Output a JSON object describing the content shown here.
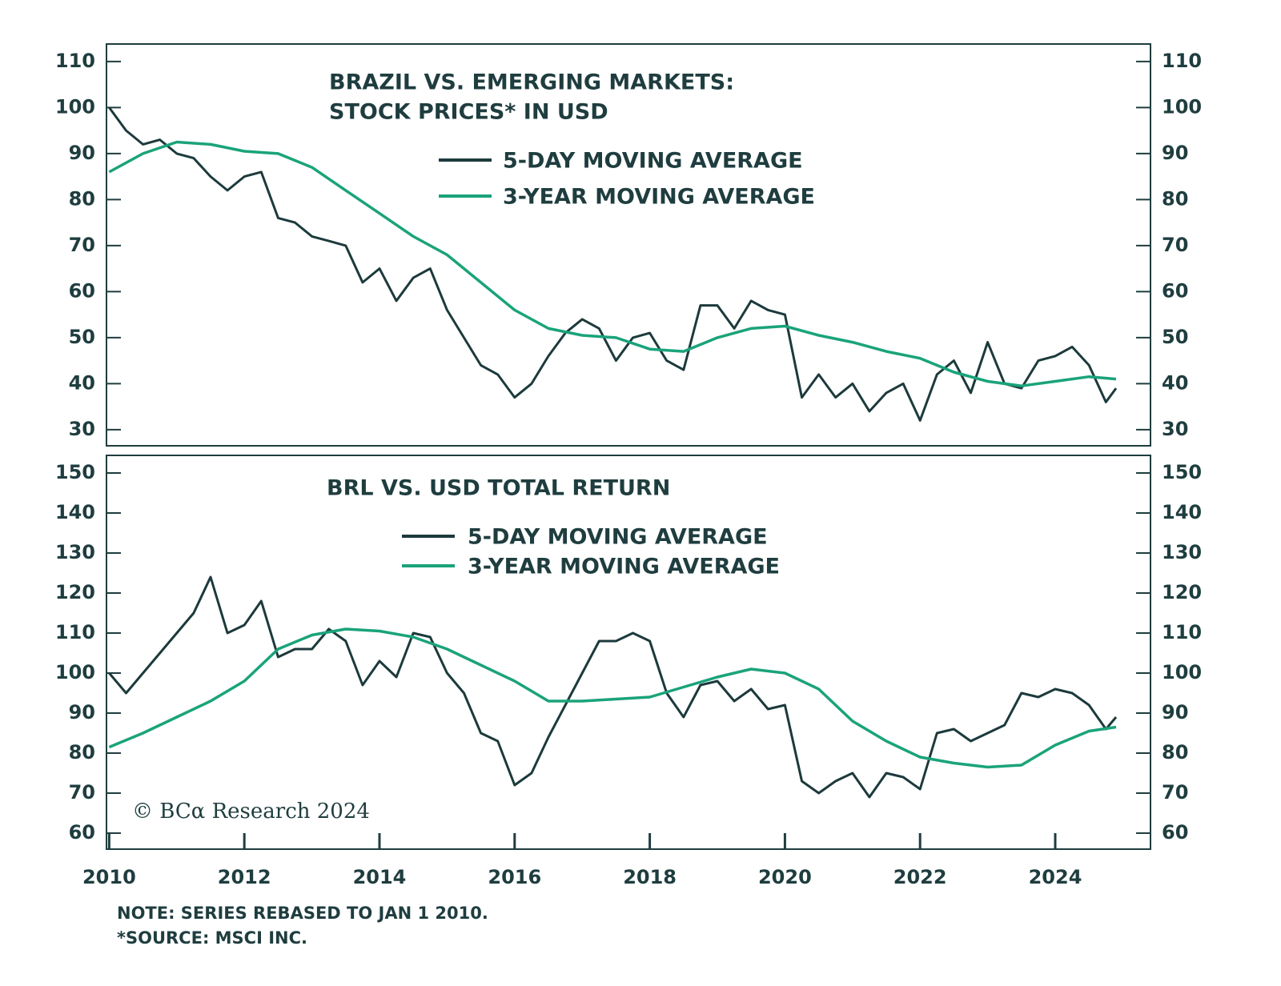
{
  "charts": [
    {
      "chart_data": {
        "type": "line",
        "title": [
          "BRAZIL VS. EMERGING MARKETS:",
          "STOCK PRICES* IN USD"
        ],
        "xlim": [
          2009.96,
          2025.41
        ],
        "ylim": [
          26.5,
          113.8
        ],
        "yticks": [
          30,
          40,
          50,
          60,
          70,
          80,
          90,
          100,
          110
        ],
        "series": [
          {
            "name": "5-DAY MOVING AVERAGE",
            "color": "#1c3a3c",
            "x": [
              2010,
              2010.25,
              2010.5,
              2010.75,
              2011,
              2011.25,
              2011.5,
              2011.75,
              2012,
              2012.25,
              2012.5,
              2012.75,
              2013,
              2013.25,
              2013.5,
              2013.75,
              2014,
              2014.25,
              2014.5,
              2014.75,
              2015,
              2015.25,
              2015.5,
              2015.75,
              2016,
              2016.25,
              2016.5,
              2016.75,
              2017,
              2017.25,
              2017.5,
              2017.75,
              2018,
              2018.25,
              2018.5,
              2018.75,
              2019,
              2019.25,
              2019.5,
              2019.75,
              2020,
              2020.25,
              2020.5,
              2020.75,
              2021,
              2021.25,
              2021.5,
              2021.75,
              2022,
              2022.25,
              2022.5,
              2022.75,
              2023,
              2023.25,
              2023.5,
              2023.75,
              2024,
              2024.25,
              2024.5,
              2024.75,
              2024.9
            ],
            "values": [
              100,
              95,
              92,
              93,
              90,
              89,
              85,
              82,
              85,
              86,
              76,
              75,
              72,
              71,
              70,
              62,
              65,
              58,
              63,
              65,
              56,
              50,
              44,
              42,
              37,
              40,
              46,
              51,
              54,
              52,
              45,
              50,
              51,
              45,
              43,
              57,
              57,
              52,
              58,
              56,
              55,
              37,
              42,
              37,
              40,
              34,
              38,
              40,
              32,
              42,
              45,
              38,
              49,
              40,
              39,
              45,
              46,
              48,
              44,
              36,
              39
            ]
          },
          {
            "name": "3-YEAR MOVING AVERAGE",
            "color": "#1aa37a",
            "x": [
              2010,
              2010.5,
              2011,
              2011.5,
              2012,
              2012.5,
              2013,
              2013.5,
              2014,
              2014.5,
              2015,
              2015.5,
              2016,
              2016.5,
              2017,
              2017.5,
              2018,
              2018.5,
              2019,
              2019.5,
              2020,
              2020.5,
              2021,
              2021.5,
              2022,
              2022.5,
              2023,
              2023.5,
              2024,
              2024.5,
              2024.9
            ],
            "values": [
              86,
              90,
              92.5,
              92,
              90.5,
              90,
              87,
              82,
              77,
              72,
              68,
              62,
              56,
              52,
              50.5,
              50,
              47.5,
              47,
              50,
              52,
              52.5,
              50.5,
              49,
              47,
              45.5,
              42.5,
              40.5,
              39.5,
              40.5,
              41.5,
              41
            ]
          }
        ]
      }
    },
    {
      "chart_data": {
        "type": "line",
        "title": [
          "BRL VS. USD TOTAL RETURN"
        ],
        "annotation": "© BCα Research 2024",
        "xlim": [
          2009.96,
          2025.41
        ],
        "xticks": [
          2010,
          2012,
          2014,
          2016,
          2018,
          2020,
          2022,
          2024
        ],
        "ylim": [
          56,
          154.4
        ],
        "yticks": [
          60,
          70,
          80,
          90,
          100,
          110,
          120,
          130,
          140,
          150
        ],
        "series": [
          {
            "name": "5-DAY MOVING AVERAGE",
            "color": "#1c3a3c",
            "x": [
              2010,
              2010.25,
              2010.5,
              2010.75,
              2011,
              2011.25,
              2011.5,
              2011.75,
              2012,
              2012.25,
              2012.5,
              2012.75,
              2013,
              2013.25,
              2013.5,
              2013.75,
              2014,
              2014.25,
              2014.5,
              2014.75,
              2015,
              2015.25,
              2015.5,
              2015.75,
              2016,
              2016.25,
              2016.5,
              2016.75,
              2017,
              2017.25,
              2017.5,
              2017.75,
              2018,
              2018.25,
              2018.5,
              2018.75,
              2019,
              2019.25,
              2019.5,
              2019.75,
              2020,
              2020.25,
              2020.5,
              2020.75,
              2021,
              2021.25,
              2021.5,
              2021.75,
              2022,
              2022.25,
              2022.5,
              2022.75,
              2023,
              2023.25,
              2023.5,
              2023.75,
              2024,
              2024.25,
              2024.5,
              2024.75,
              2024.9
            ],
            "values": [
              100,
              95,
              100,
              105,
              110,
              115,
              124,
              110,
              112,
              118,
              104,
              106,
              106,
              111,
              108,
              97,
              103,
              99,
              110,
              109,
              100,
              95,
              85,
              83,
              72,
              75,
              84,
              92,
              100,
              108,
              108,
              110,
              108,
              95,
              89,
              97,
              98,
              93,
              96,
              91,
              92,
              73,
              70,
              73,
              75,
              69,
              75,
              74,
              71,
              85,
              86,
              83,
              85,
              87,
              95,
              94,
              96,
              95,
              92,
              86,
              89
            ]
          },
          {
            "name": "3-YEAR MOVING AVERAGE",
            "color": "#1aa37a",
            "x": [
              2010,
              2010.5,
              2011,
              2011.5,
              2012,
              2012.5,
              2013,
              2013.5,
              2014,
              2014.5,
              2015,
              2015.5,
              2016,
              2016.5,
              2017,
              2017.5,
              2018,
              2018.5,
              2019,
              2019.5,
              2020,
              2020.5,
              2021,
              2021.5,
              2022,
              2022.5,
              2023,
              2023.5,
              2024,
              2024.5,
              2024.9
            ],
            "values": [
              81.5,
              85,
              89,
              93,
              98,
              106,
              109.5,
              111,
              110.5,
              109,
              106,
              102,
              98,
              93,
              93,
              93.5,
              94,
              96.5,
              99,
              101,
              100,
              96,
              88,
              83,
              79,
              77.5,
              76.5,
              77,
              82,
              85.5,
              86.5
            ]
          }
        ]
      }
    }
  ],
  "notes": [
    "NOTE: SERIES REBASED TO JAN 1 2010.",
    "*SOURCE: MSCI INC."
  ]
}
